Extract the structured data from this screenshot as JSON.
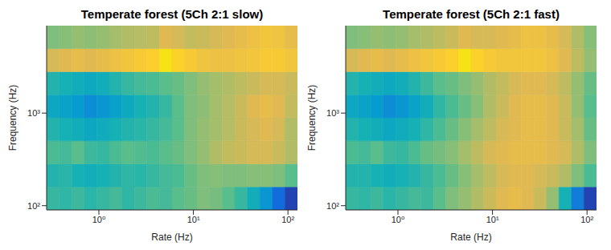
{
  "chart_data": [
    {
      "type": "heatmap",
      "title": "Temperate forest (5Ch 2:1 slow)",
      "x_label": "Rate (Hz)",
      "y_label": "Frequency (Hz)",
      "log": true,
      "xlim": [
        0.28,
        126
      ],
      "ylim": [
        90,
        8800
      ],
      "xticks": [
        {
          "value": 1,
          "label": "10⁰"
        },
        {
          "value": 10,
          "label": "10¹"
        },
        {
          "value": 100,
          "label": "10²"
        }
      ],
      "yticks": [
        {
          "value": 100,
          "label": "10²"
        },
        {
          "value": 1000,
          "label": "10³"
        }
      ],
      "x_edges": [
        0.28,
        0.38,
        0.52,
        0.7,
        0.95,
        1.29,
        1.75,
        2.38,
        3.22,
        4.38,
        5.94,
        8.06,
        10.9,
        14.9,
        20.1,
        27.4,
        37.2,
        50.4,
        68.4,
        92.7,
        126
      ],
      "y_edges": [
        90,
        160,
        283,
        502,
        891,
        1580,
        2800,
        4970,
        8800
      ],
      "color_range": [
        0,
        1
      ],
      "cells": [
        [
          0.45,
          0.44,
          0.46,
          0.43,
          0.45,
          0.47,
          0.44,
          0.46,
          0.48,
          0.47,
          0.5,
          0.52,
          0.55,
          0.54,
          0.5,
          0.45,
          0.38,
          0.28,
          0.15,
          0.05
        ],
        [
          0.42,
          0.43,
          0.4,
          0.38,
          0.4,
          0.42,
          0.44,
          0.43,
          0.45,
          0.47,
          0.48,
          0.52,
          0.55,
          0.56,
          0.55,
          0.55,
          0.56,
          0.56,
          0.55,
          0.5
        ],
        [
          0.48,
          0.47,
          0.5,
          0.46,
          0.45,
          0.48,
          0.5,
          0.49,
          0.48,
          0.5,
          0.52,
          0.55,
          0.58,
          0.62,
          0.65,
          0.66,
          0.68,
          0.68,
          0.66,
          0.62
        ],
        [
          0.42,
          0.4,
          0.38,
          0.35,
          0.37,
          0.4,
          0.42,
          0.43,
          0.45,
          0.47,
          0.5,
          0.55,
          0.58,
          0.6,
          0.63,
          0.66,
          0.68,
          0.7,
          0.68,
          0.62
        ],
        [
          0.35,
          0.33,
          0.3,
          0.25,
          0.28,
          0.32,
          0.36,
          0.4,
          0.42,
          0.45,
          0.5,
          0.55,
          0.57,
          0.6,
          0.63,
          0.66,
          0.7,
          0.72,
          0.7,
          0.65
        ],
        [
          0.42,
          0.4,
          0.38,
          0.36,
          0.38,
          0.42,
          0.45,
          0.47,
          0.48,
          0.5,
          0.52,
          0.55,
          0.58,
          0.6,
          0.62,
          0.64,
          0.66,
          0.68,
          0.68,
          0.66
        ],
        [
          0.68,
          0.7,
          0.72,
          0.7,
          0.72,
          0.74,
          0.76,
          0.78,
          0.8,
          0.9,
          0.82,
          0.78,
          0.75,
          0.74,
          0.74,
          0.75,
          0.76,
          0.78,
          0.78,
          0.76
        ],
        [
          0.55,
          0.56,
          0.58,
          0.57,
          0.58,
          0.6,
          0.62,
          0.63,
          0.64,
          0.7,
          0.68,
          0.65,
          0.66,
          0.68,
          0.7,
          0.72,
          0.74,
          0.76,
          0.75,
          0.72
        ]
      ]
    },
    {
      "type": "heatmap",
      "title": "Temperate forest (5Ch 2:1 fast)",
      "x_label": "Rate (Hz)",
      "y_label": "Frequency (Hz)",
      "log": true,
      "xlim": [
        0.28,
        126
      ],
      "ylim": [
        90,
        8800
      ],
      "xticks": [
        {
          "value": 1,
          "label": "10⁰"
        },
        {
          "value": 10,
          "label": "10¹"
        },
        {
          "value": 100,
          "label": "10²"
        }
      ],
      "yticks": [
        {
          "value": 100,
          "label": "10²"
        },
        {
          "value": 1000,
          "label": "10³"
        }
      ],
      "x_edges": [
        0.28,
        0.38,
        0.52,
        0.7,
        0.95,
        1.29,
        1.75,
        2.38,
        3.22,
        4.38,
        5.94,
        8.06,
        10.9,
        14.9,
        20.1,
        27.4,
        37.2,
        50.4,
        68.4,
        92.7,
        126
      ],
      "y_edges": [
        90,
        160,
        283,
        502,
        891,
        1580,
        2800,
        4970,
        8800
      ],
      "color_range": [
        0,
        1
      ],
      "cells": [
        [
          0.45,
          0.44,
          0.46,
          0.43,
          0.45,
          0.47,
          0.46,
          0.5,
          0.55,
          0.58,
          0.62,
          0.66,
          0.7,
          0.72,
          0.7,
          0.66,
          0.58,
          0.4,
          0.2,
          0.05
        ],
        [
          0.42,
          0.42,
          0.4,
          0.38,
          0.4,
          0.42,
          0.45,
          0.48,
          0.52,
          0.56,
          0.6,
          0.64,
          0.68,
          0.7,
          0.7,
          0.68,
          0.66,
          0.62,
          0.55,
          0.48
        ],
        [
          0.48,
          0.47,
          0.5,
          0.46,
          0.45,
          0.48,
          0.52,
          0.54,
          0.56,
          0.6,
          0.64,
          0.68,
          0.7,
          0.72,
          0.72,
          0.72,
          0.7,
          0.68,
          0.62,
          0.55
        ],
        [
          0.42,
          0.4,
          0.38,
          0.35,
          0.37,
          0.4,
          0.44,
          0.48,
          0.52,
          0.56,
          0.6,
          0.64,
          0.68,
          0.7,
          0.72,
          0.72,
          0.7,
          0.66,
          0.6,
          0.52
        ],
        [
          0.35,
          0.33,
          0.3,
          0.25,
          0.28,
          0.33,
          0.38,
          0.44,
          0.48,
          0.52,
          0.56,
          0.62,
          0.66,
          0.7,
          0.72,
          0.72,
          0.7,
          0.66,
          0.58,
          0.5
        ],
        [
          0.42,
          0.4,
          0.38,
          0.36,
          0.38,
          0.42,
          0.46,
          0.5,
          0.52,
          0.55,
          0.58,
          0.62,
          0.65,
          0.68,
          0.7,
          0.7,
          0.68,
          0.64,
          0.58,
          0.52
        ],
        [
          0.68,
          0.7,
          0.72,
          0.7,
          0.72,
          0.74,
          0.76,
          0.78,
          0.8,
          0.9,
          0.82,
          0.78,
          0.76,
          0.76,
          0.76,
          0.76,
          0.74,
          0.7,
          0.64,
          0.58
        ],
        [
          0.55,
          0.56,
          0.58,
          0.57,
          0.58,
          0.6,
          0.62,
          0.64,
          0.66,
          0.7,
          0.68,
          0.68,
          0.7,
          0.72,
          0.74,
          0.74,
          0.72,
          0.68,
          0.62,
          0.56
        ]
      ]
    }
  ]
}
